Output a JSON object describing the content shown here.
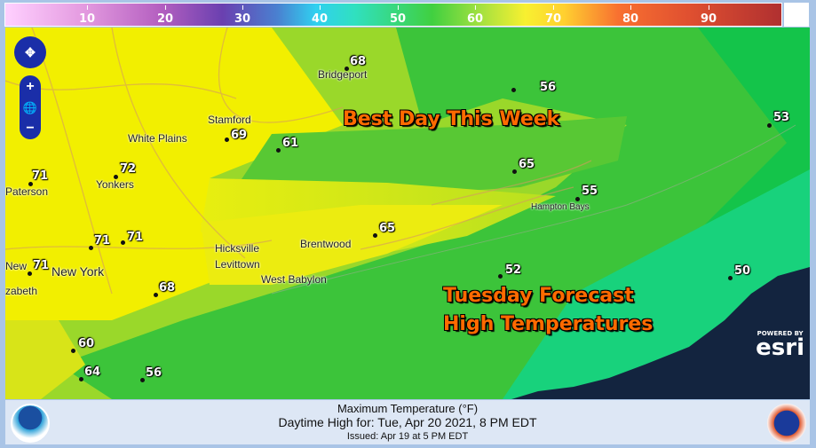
{
  "legend": {
    "ticks": [
      "10",
      "20",
      "30",
      "40",
      "50",
      "60",
      "70",
      "80",
      "90"
    ]
  },
  "map": {
    "overlay": {
      "line1": "Best Day This Week",
      "line2": "Tuesday Forecast",
      "line3": "High Temperatures"
    },
    "places": [
      "Bridgeport",
      "White Plains",
      "Stamford",
      "Yonkers",
      "Paterson",
      "Hicksville",
      "Levittown",
      "Brentwood",
      "West Babylon",
      "Hampton Bays",
      "New York",
      "New",
      "zabeth"
    ],
    "temperatures": [
      "68",
      "56",
      "53",
      "69",
      "61",
      "65",
      "55",
      "71",
      "72",
      "71",
      "71",
      "65",
      "52",
      "50",
      "71",
      "68",
      "60",
      "64",
      "56"
    ],
    "esri": {
      "powered": "POWERED BY",
      "brand": "esri"
    },
    "zoom_in": "+",
    "zoom_out": "−"
  },
  "footer": {
    "title": "Maximum Temperature (°F)",
    "subtitle": "Daytime High for: Tue, Apr 20 2021,   8 PM EDT",
    "issued": "Issued: Apr 19 at 5 PM EDT"
  },
  "colors": {
    "yellow": "#f2ef00",
    "green": "#2fbf2f",
    "teal": "#19d17a",
    "ocean_dark": "#13243f"
  }
}
